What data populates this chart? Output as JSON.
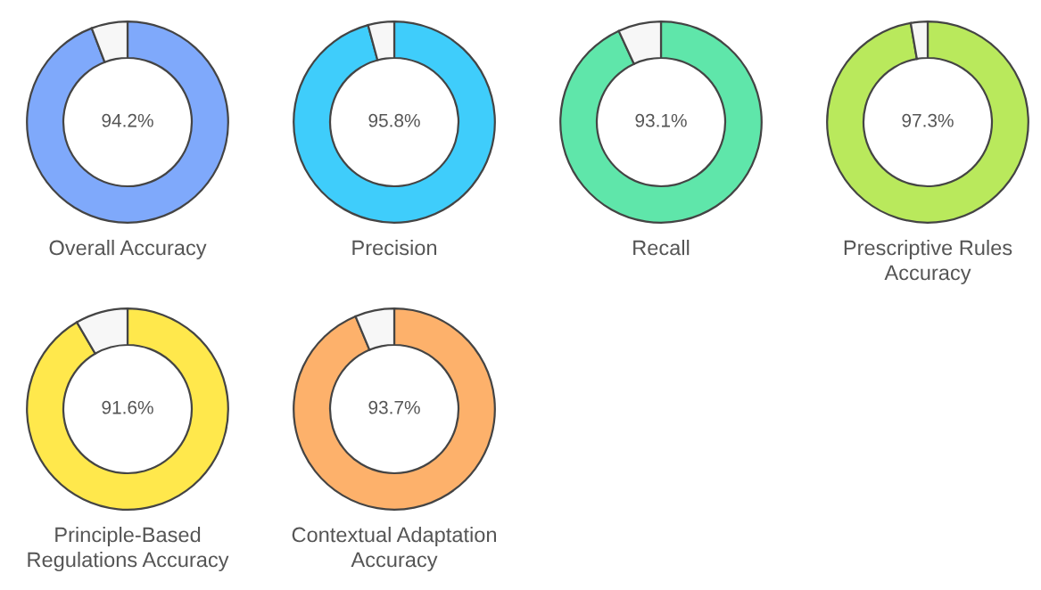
{
  "chart_data": [
    {
      "type": "donut",
      "title": "Overall Accuracy",
      "categories": [
        null,
        null
      ],
      "values": [
        94.2,
        5.8
      ],
      "colors": [
        "#7fa9fb",
        "#f7f7f7"
      ],
      "value_labels": [
        "94.2%",
        null
      ]
    },
    {
      "type": "donut",
      "title": "Precision",
      "categories": [
        null,
        null
      ],
      "values": [
        95.8,
        4.2
      ],
      "colors": [
        "#3fcdfb",
        "#f7f7f7"
      ],
      "value_labels": [
        "95.8%",
        null
      ]
    },
    {
      "type": "donut",
      "title": "Recall",
      "categories": [
        null,
        null
      ],
      "values": [
        93.1,
        6.9
      ],
      "colors": [
        "#5fe6aa",
        "#f7f7f7"
      ],
      "value_labels": [
        "93.1%",
        null
      ]
    },
    {
      "type": "donut",
      "title": "Prescriptive Rules\nAccuracy",
      "categories": [
        null,
        null
      ],
      "values": [
        97.3,
        2.7
      ],
      "colors": [
        "#b9e95c",
        "#f7f7f7"
      ],
      "value_labels": [
        "97.3%",
        null
      ]
    },
    {
      "type": "donut",
      "title": "Principle-Based\nRegulations Accuracy",
      "categories": [
        null,
        null
      ],
      "values": [
        91.6,
        8.4
      ],
      "colors": [
        "#ffe84c",
        "#f7f7f7"
      ],
      "value_labels": [
        "91.6%",
        null
      ]
    },
    {
      "type": "donut",
      "title": "Contextual Adaptation\nAccuracy",
      "categories": [
        null,
        null
      ],
      "values": [
        93.7,
        6.3
      ],
      "colors": [
        "#fdb16b",
        "#f7f7f7"
      ],
      "value_labels": [
        "93.7%",
        null
      ]
    }
  ]
}
